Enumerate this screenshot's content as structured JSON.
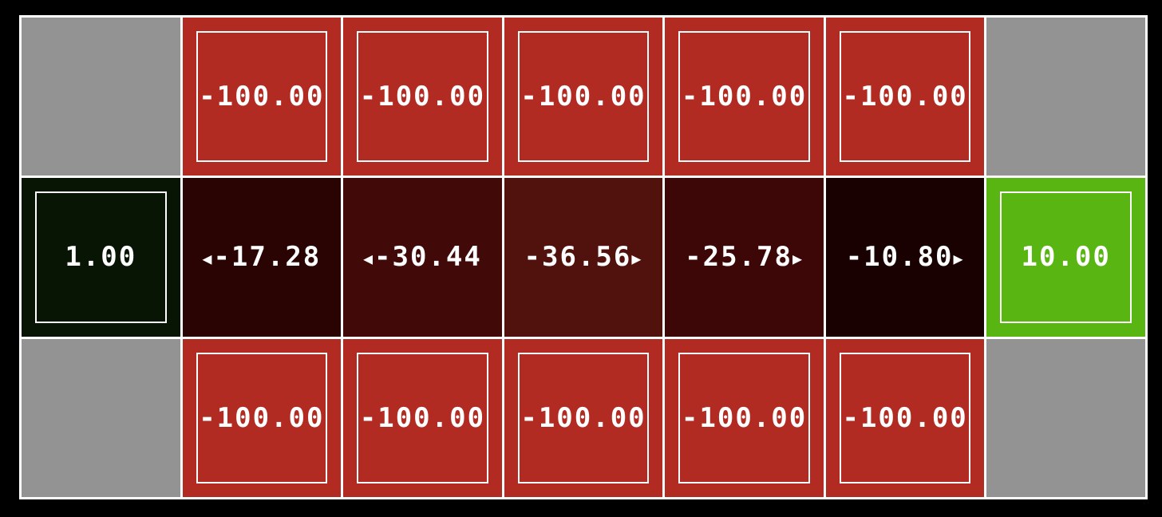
{
  "grid": {
    "rows": 3,
    "cols": 7,
    "cells": [
      [
        {
          "kind": "wall",
          "value": "",
          "color": "#939393"
        },
        {
          "kind": "cliff",
          "value": "-100.00",
          "color": "#b22b22"
        },
        {
          "kind": "cliff",
          "value": "-100.00",
          "color": "#b22b22"
        },
        {
          "kind": "cliff",
          "value": "-100.00",
          "color": "#b22b22"
        },
        {
          "kind": "cliff",
          "value": "-100.00",
          "color": "#b22b22"
        },
        {
          "kind": "cliff",
          "value": "-100.00",
          "color": "#b22b22"
        },
        {
          "kind": "wall",
          "value": "",
          "color": "#939393"
        }
      ],
      [
        {
          "kind": "terminal",
          "value": "1.00",
          "color": "#081505"
        },
        {
          "kind": "state",
          "value": "-17.28",
          "color": "#290402",
          "policy": "west"
        },
        {
          "kind": "state",
          "value": "-30.44",
          "color": "#420909",
          "policy": "west"
        },
        {
          "kind": "state",
          "value": "-36.56",
          "color": "#51110d",
          "policy": "east"
        },
        {
          "kind": "state",
          "value": "-25.78",
          "color": "#3c0706",
          "policy": "east"
        },
        {
          "kind": "state",
          "value": "-10.80",
          "color": "#190101",
          "policy": "east"
        },
        {
          "kind": "terminal",
          "value": "10.00",
          "color": "#58b512"
        }
      ],
      [
        {
          "kind": "wall",
          "value": "",
          "color": "#939393"
        },
        {
          "kind": "cliff",
          "value": "-100.00",
          "color": "#b22b22"
        },
        {
          "kind": "cliff",
          "value": "-100.00",
          "color": "#b22b22"
        },
        {
          "kind": "cliff",
          "value": "-100.00",
          "color": "#b22b22"
        },
        {
          "kind": "cliff",
          "value": "-100.00",
          "color": "#b22b22"
        },
        {
          "kind": "cliff",
          "value": "-100.00",
          "color": "#b22b22"
        },
        {
          "kind": "wall",
          "value": "",
          "color": "#939393"
        }
      ]
    ]
  }
}
